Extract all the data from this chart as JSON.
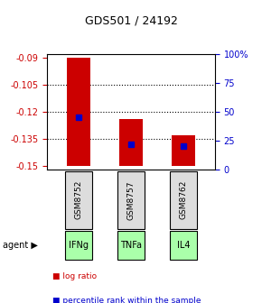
{
  "title": "GDS501 / 24192",
  "samples": [
    "GSM8752",
    "GSM8757",
    "GSM8762"
  ],
  "agents": [
    "IFNg",
    "TNFa",
    "IL4"
  ],
  "bar_tops": [
    -0.09,
    -0.124,
    -0.133
  ],
  "bar_bottom": -0.15,
  "blue_marker_vals": [
    -0.123,
    -0.138,
    -0.139
  ],
  "blue_marker_pct": [
    45,
    20,
    20
  ],
  "ylim_left": [
    -0.152,
    -0.088
  ],
  "yticks_left": [
    -0.09,
    -0.105,
    -0.12,
    -0.135,
    -0.15
  ],
  "ytick_labels_left": [
    "-0.09",
    "-0.105",
    "-0.12",
    "-0.135",
    "-0.15"
  ],
  "yticks_right_pct": [
    0,
    25,
    50,
    75,
    100
  ],
  "ytick_labels_right": [
    "0",
    "25",
    "50",
    "75",
    "100%"
  ],
  "bar_color": "#cc0000",
  "blue_color": "#0000cc",
  "agent_bg_color": "#aaffaa",
  "sample_bg_color": "#dddddd",
  "grid_color": "#000000",
  "left_axis_color": "#cc0000",
  "right_axis_color": "#0000cc",
  "bar_width": 0.45,
  "legend_logratio_label": "log ratio",
  "legend_pct_label": "percentile rank within the sample"
}
